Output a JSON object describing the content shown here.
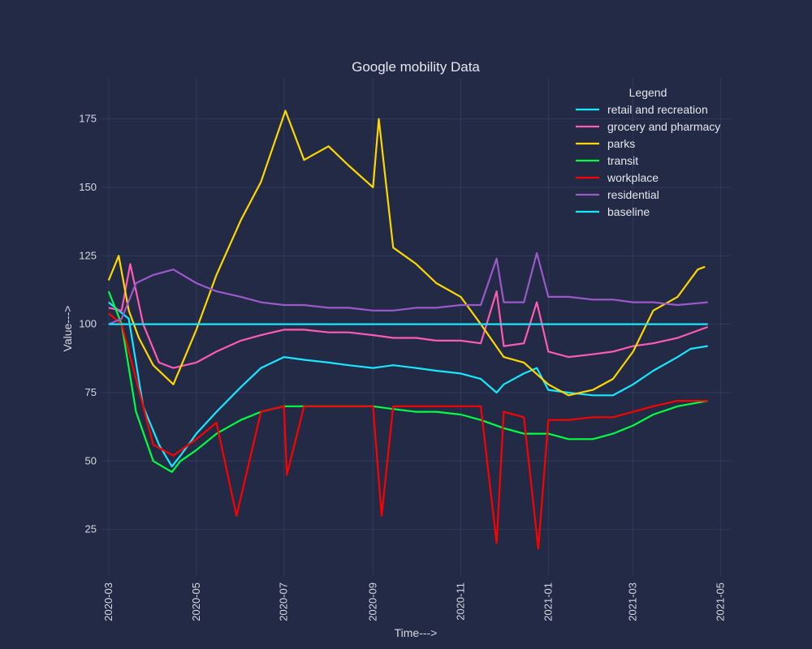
{
  "chart_data": {
    "type": "line",
    "title": "Google mobility Data",
    "xlabel": "Time--->",
    "ylabel": "Value--->",
    "x_range": [
      "2020-02-25",
      "2021-05-08"
    ],
    "ylim": [
      8,
      190
    ],
    "y_ticks": [
      25,
      50,
      75,
      100,
      125,
      150,
      175
    ],
    "x_ticks": [
      "2020-03",
      "2020-05",
      "2020-07",
      "2020-09",
      "2020-11",
      "2021-01",
      "2021-03",
      "2021-05"
    ],
    "grid": true,
    "legend": {
      "title": "Legend",
      "position": "top-right"
    },
    "series": [
      {
        "name": "retail and recreation",
        "color": "#19e6ff",
        "x": [
          "2020-03-01",
          "2020-03-15",
          "2020-03-25",
          "2020-04-05",
          "2020-04-14",
          "2020-04-20",
          "2020-05-01",
          "2020-05-15",
          "2020-06-01",
          "2020-06-15",
          "2020-07-01",
          "2020-07-15",
          "2020-08-01",
          "2020-08-15",
          "2020-09-01",
          "2020-09-15",
          "2020-10-01",
          "2020-10-15",
          "2020-11-01",
          "2020-11-15",
          "2020-11-26",
          "2020-12-01",
          "2020-12-15",
          "2020-12-24",
          "2021-01-01",
          "2021-01-15",
          "2021-02-01",
          "2021-02-15",
          "2021-03-01",
          "2021-03-15",
          "2021-04-01",
          "2021-04-10",
          "2021-04-22"
        ],
        "y": [
          108,
          102,
          70,
          56,
          48,
          52,
          60,
          68,
          77,
          84,
          88,
          87,
          86,
          85,
          84,
          85,
          84,
          83,
          82,
          80,
          75,
          78,
          82,
          84,
          76,
          75,
          74,
          74,
          78,
          83,
          88,
          91,
          92
        ]
      },
      {
        "name": "grocery and pharmacy",
        "color": "#ff5ab4",
        "x": [
          "2020-03-01",
          "2020-03-10",
          "2020-03-16",
          "2020-03-25",
          "2020-04-05",
          "2020-04-15",
          "2020-05-01",
          "2020-05-15",
          "2020-06-01",
          "2020-06-15",
          "2020-07-01",
          "2020-07-15",
          "2020-08-01",
          "2020-08-15",
          "2020-09-01",
          "2020-09-15",
          "2020-10-01",
          "2020-10-15",
          "2020-11-01",
          "2020-11-15",
          "2020-11-26",
          "2020-12-01",
          "2020-12-15",
          "2020-12-24",
          "2021-01-01",
          "2021-01-15",
          "2021-02-01",
          "2021-02-15",
          "2021-03-01",
          "2021-03-15",
          "2021-04-01",
          "2021-04-22"
        ],
        "y": [
          106,
          105,
          122,
          100,
          86,
          84,
          86,
          90,
          94,
          96,
          98,
          98,
          97,
          97,
          96,
          95,
          95,
          94,
          94,
          93,
          112,
          92,
          93,
          108,
          90,
          88,
          89,
          90,
          92,
          93,
          95,
          99
        ]
      },
      {
        "name": "parks",
        "color": "#ffd700",
        "x": [
          "2020-03-01",
          "2020-03-08",
          "2020-03-15",
          "2020-03-22",
          "2020-04-01",
          "2020-04-15",
          "2020-05-01",
          "2020-05-15",
          "2020-06-01",
          "2020-06-15",
          "2020-07-02",
          "2020-07-15",
          "2020-08-01",
          "2020-08-15",
          "2020-09-01",
          "2020-09-05",
          "2020-09-15",
          "2020-10-01",
          "2020-10-15",
          "2020-11-01",
          "2020-11-15",
          "2020-12-01",
          "2020-12-15",
          "2021-01-01",
          "2021-01-15",
          "2021-02-01",
          "2021-02-15",
          "2021-03-01",
          "2021-03-15",
          "2021-04-01",
          "2021-04-15",
          "2021-04-20"
        ],
        "y": [
          116,
          125,
          105,
          95,
          85,
          78,
          98,
          118,
          138,
          152,
          178,
          160,
          165,
          158,
          150,
          175,
          128,
          122,
          115,
          110,
          100,
          88,
          86,
          78,
          74,
          76,
          80,
          90,
          105,
          110,
          120,
          121
        ]
      },
      {
        "name": "transit",
        "color": "#00ff41",
        "x": [
          "2020-03-01",
          "2020-03-10",
          "2020-03-20",
          "2020-04-01",
          "2020-04-14",
          "2020-04-20",
          "2020-05-01",
          "2020-05-15",
          "2020-06-01",
          "2020-06-15",
          "2020-07-01",
          "2020-07-15",
          "2020-08-01",
          "2020-08-15",
          "2020-09-01",
          "2020-09-15",
          "2020-10-01",
          "2020-10-15",
          "2020-11-01",
          "2020-11-15",
          "2020-12-01",
          "2020-12-15",
          "2021-01-01",
          "2021-01-15",
          "2021-02-01",
          "2021-02-15",
          "2021-03-01",
          "2021-03-15",
          "2021-04-01",
          "2021-04-22"
        ],
        "y": [
          112,
          100,
          68,
          50,
          46,
          50,
          54,
          60,
          65,
          68,
          70,
          70,
          70,
          70,
          70,
          69,
          68,
          68,
          67,
          65,
          62,
          60,
          60,
          58,
          58,
          60,
          63,
          67,
          70,
          72
        ]
      },
      {
        "name": "workplace",
        "color": "#ff0000",
        "x": [
          "2020-03-01",
          "2020-03-10",
          "2020-03-20",
          "2020-04-01",
          "2020-04-15",
          "2020-05-01",
          "2020-05-15",
          "2020-05-29",
          "2020-06-15",
          "2020-07-01",
          "2020-07-03",
          "2020-07-15",
          "2020-08-01",
          "2020-08-15",
          "2020-09-01",
          "2020-09-07",
          "2020-09-15",
          "2020-10-01",
          "2020-10-15",
          "2020-11-01",
          "2020-11-15",
          "2020-11-26",
          "2020-12-01",
          "2020-12-15",
          "2020-12-25",
          "2021-01-01",
          "2021-01-15",
          "2021-02-01",
          "2021-02-15",
          "2021-03-01",
          "2021-03-15",
          "2021-04-01",
          "2021-04-22"
        ],
        "y": [
          104,
          100,
          80,
          56,
          52,
          58,
          64,
          30,
          68,
          70,
          45,
          70,
          70,
          70,
          70,
          30,
          70,
          70,
          70,
          70,
          70,
          20,
          68,
          66,
          18,
          65,
          65,
          66,
          66,
          68,
          70,
          72,
          72
        ]
      },
      {
        "name": "residential",
        "color": "#9b59c9",
        "x": [
          "2020-03-01",
          "2020-03-10",
          "2020-03-20",
          "2020-04-01",
          "2020-04-15",
          "2020-05-01",
          "2020-05-15",
          "2020-06-01",
          "2020-06-15",
          "2020-07-01",
          "2020-07-15",
          "2020-08-01",
          "2020-08-15",
          "2020-09-01",
          "2020-09-15",
          "2020-10-01",
          "2020-10-15",
          "2020-11-01",
          "2020-11-15",
          "2020-11-26",
          "2020-12-01",
          "2020-12-15",
          "2020-12-24",
          "2021-01-01",
          "2021-01-15",
          "2021-02-01",
          "2021-02-15",
          "2021-03-01",
          "2021-03-15",
          "2021-04-01",
          "2021-04-22"
        ],
        "y": [
          100,
          102,
          115,
          118,
          120,
          115,
          112,
          110,
          108,
          107,
          107,
          106,
          106,
          105,
          105,
          106,
          106,
          107,
          107,
          124,
          108,
          108,
          126,
          110,
          110,
          109,
          109,
          108,
          108,
          107,
          108
        ]
      },
      {
        "name": "baseline",
        "color": "#19e6ff",
        "x": [
          "2020-03-01",
          "2021-04-22"
        ],
        "y": [
          100,
          100
        ]
      }
    ]
  }
}
